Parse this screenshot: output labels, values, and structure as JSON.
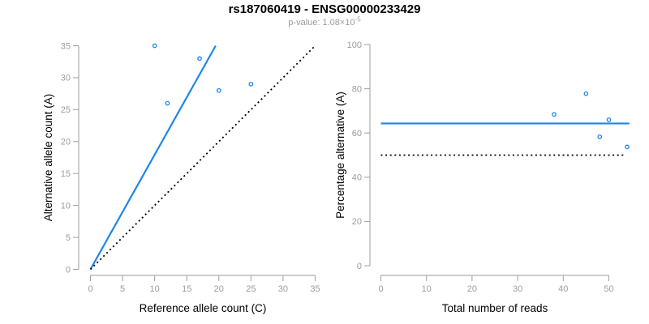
{
  "header": {
    "title": "rs187060419 - ENSG00000233429",
    "subtitle_prefix": "p-value: 1.08×10",
    "subtitle_exponent": "-5"
  },
  "colors": {
    "accent_blue": "#1E85EB",
    "identity_black": "#000000",
    "axis_gray": "#9E9E9E",
    "tick_label_gray": "#9C9C9C",
    "title_black": "#000000",
    "subtitle_gray": "#9B9B9B"
  },
  "chart_data": [
    {
      "type": "scatter",
      "xlabel": "Reference allele count (C)",
      "ylabel": "Alternative allele count (A)",
      "xlim": [
        0,
        35
      ],
      "ylim": [
        0,
        35
      ],
      "xticks": [
        0,
        5,
        10,
        15,
        20,
        25,
        30,
        35
      ],
      "yticks": [
        0,
        5,
        10,
        15,
        20,
        25,
        30,
        35
      ],
      "grid": false,
      "legend": false,
      "point_color": "#1E85EB",
      "points": [
        [
          10,
          35
        ],
        [
          12,
          26
        ],
        [
          17,
          33
        ],
        [
          20,
          28
        ],
        [
          25,
          29
        ]
      ],
      "lines": [
        {
          "name": "fitted-allelic-ratio-line",
          "style": "solid",
          "color": "#1E85EB",
          "width": 2.2,
          "x1": 0,
          "y1": 0,
          "x2": 19.5,
          "y2": 35
        },
        {
          "name": "identity-line",
          "style": "dotted",
          "color": "#000000",
          "width": 1.8,
          "x1": 0,
          "y1": 0,
          "x2": 35,
          "y2": 35
        }
      ]
    },
    {
      "type": "scatter",
      "xlabel": "Total number of reads",
      "ylabel": "Percentage alternative (A)",
      "xlim": [
        0,
        55
      ],
      "ylim": [
        0,
        100
      ],
      "xticks": [
        0,
        10,
        20,
        30,
        40,
        50
      ],
      "yticks": [
        0,
        20,
        40,
        60,
        80,
        100
      ],
      "grid": false,
      "legend": false,
      "point_color": "#1E85EB",
      "points": [
        [
          38,
          68.4
        ],
        [
          45,
          77.8
        ],
        [
          48,
          58.3
        ],
        [
          50,
          66
        ],
        [
          54,
          53.7
        ]
      ],
      "lines": [
        {
          "name": "fitted-percentage-line",
          "style": "solid",
          "color": "#1E85EB",
          "width": 2.2,
          "x1": 0,
          "y1": 64.3,
          "x2": 54.5,
          "y2": 64.3
        },
        {
          "name": "null-50-percent-line",
          "style": "dotted",
          "color": "#000000",
          "width": 1.8,
          "x1": 0,
          "y1": 50,
          "x2": 53.5,
          "y2": 50
        }
      ]
    }
  ]
}
